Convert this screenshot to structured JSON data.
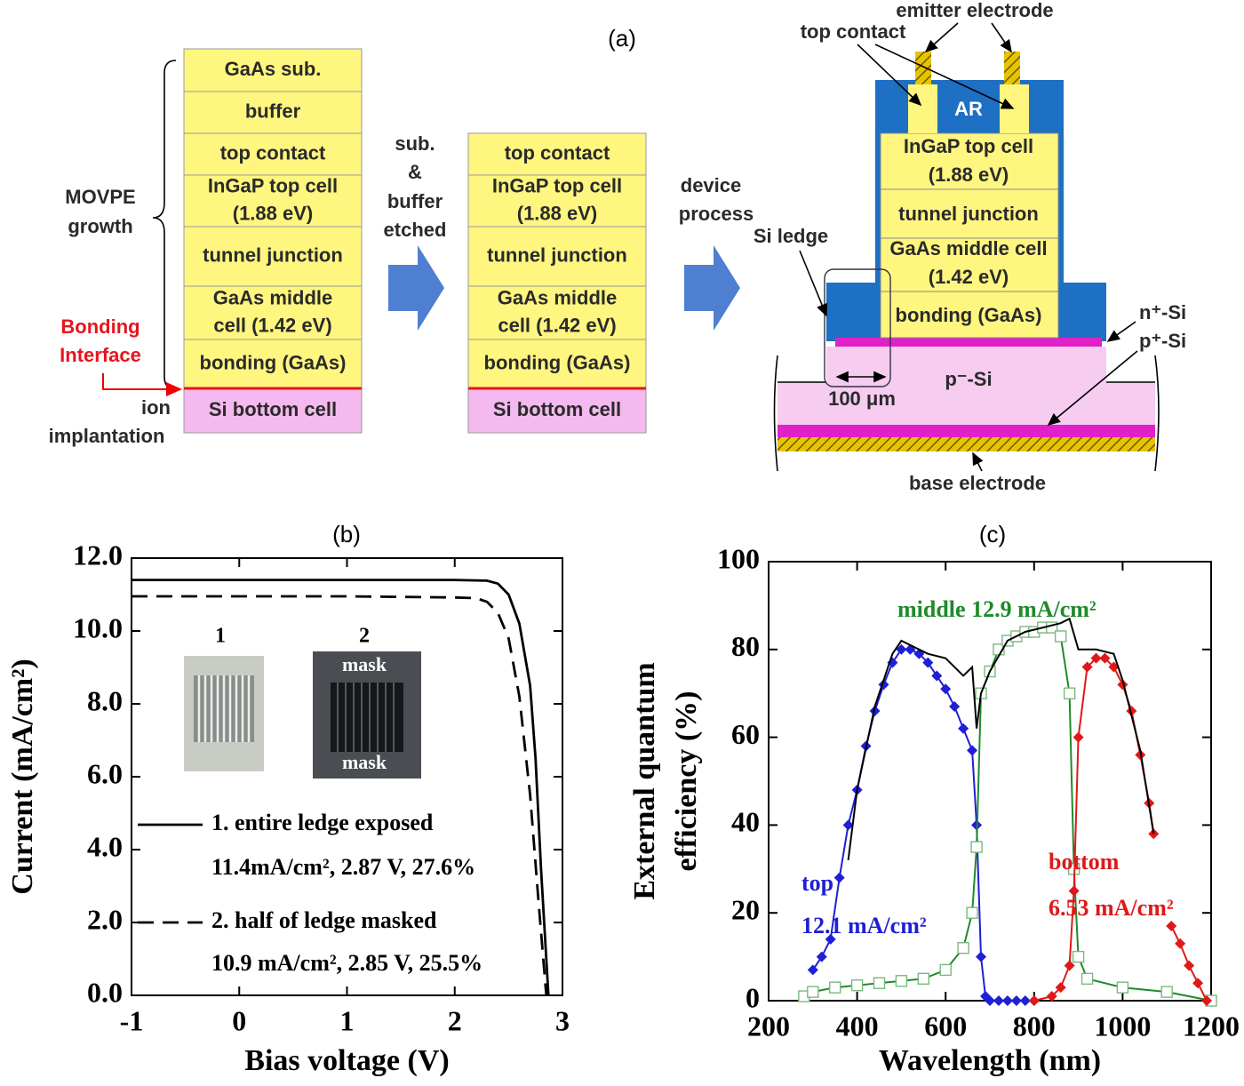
{
  "panel_a": {
    "label": "(a)",
    "growth_label": [
      "MOVPE",
      "growth"
    ],
    "bonding_label": [
      "Bonding",
      "Interface"
    ],
    "ion_label": [
      "ion",
      "implantation"
    ],
    "etch_label": [
      "sub.",
      "&",
      "buffer",
      "etched"
    ],
    "process_label": [
      "device",
      "process"
    ],
    "stack_grown": [
      [
        "GaAs sub."
      ],
      [
        "buffer"
      ],
      [
        "top contact"
      ],
      [
        "InGaP top cell",
        "(1.88 eV)"
      ],
      [
        "tunnel junction"
      ],
      [
        "GaAs middle",
        "cell (1.42 eV)"
      ],
      [
        "bonding (GaAs)"
      ],
      [
        "Si bottom cell"
      ]
    ],
    "stack_etched": [
      [
        "top contact"
      ],
      [
        "InGaP top cell",
        "(1.88 eV)"
      ],
      [
        "tunnel junction"
      ],
      [
        "GaAs middle",
        "cell (1.42 eV)"
      ],
      [
        "bonding (GaAs)"
      ],
      [
        "Si bottom cell"
      ]
    ],
    "device": {
      "emitter_electrode": "emitter electrode",
      "top_contact": "top contact",
      "ar": "AR",
      "layers": [
        [
          "InGaP top cell",
          "(1.88 eV)"
        ],
        [
          "tunnel junction"
        ],
        [
          "GaAs middle cell",
          "(1.42 eV)"
        ],
        [
          "bonding (GaAs)"
        ]
      ],
      "si_ledge": "Si ledge",
      "n_si": "n⁺-Si",
      "p_plus_si": "p⁺-Si",
      "p_minus_si": "p⁻-Si",
      "ledge_width": "100 μm",
      "base_electrode": "base electrode"
    }
  },
  "chart_data": [
    {
      "type": "line",
      "panel_label": "(b)",
      "x_label": "Bias voltage (V)",
      "y_label": "Current (mA/cm²)",
      "xlim": [
        -1,
        3
      ],
      "xticks": [
        -1,
        0,
        1,
        2,
        3
      ],
      "ylim": [
        0,
        12
      ],
      "yticks": [
        {
          "value": 0,
          "label": "0.0"
        },
        {
          "value": 2,
          "label": "2.0"
        },
        {
          "value": 4,
          "label": "4.0"
        },
        {
          "value": 6,
          "label": "6.0"
        },
        {
          "value": 8,
          "label": "8.0"
        },
        {
          "value": 10,
          "label": "10.0"
        },
        {
          "value": 12,
          "label": "12.0"
        }
      ],
      "inset_labels": [
        "1",
        "2",
        "mask",
        "mask"
      ],
      "series": [
        {
          "name": "1. entire ledge exposed",
          "summary": "11.4mA/cm², 2.87 V, 27.6%",
          "color": "#000000",
          "dash": "solid",
          "x": [
            -1,
            0,
            1,
            2,
            2.3,
            2.4,
            2.5,
            2.6,
            2.7,
            2.75,
            2.8,
            2.85,
            2.87
          ],
          "values": [
            11.4,
            11.4,
            11.4,
            11.4,
            11.38,
            11.3,
            11.0,
            10.2,
            8.5,
            6.5,
            3.5,
            1.0,
            0
          ]
        },
        {
          "name": "2. half of ledge masked",
          "summary": "10.9 mA/cm², 2.85 V, 25.5%",
          "color": "#000000",
          "dash": "dashed",
          "x": [
            -1,
            0,
            1,
            2,
            2.2,
            2.3,
            2.4,
            2.5,
            2.6,
            2.7,
            2.78,
            2.85
          ],
          "values": [
            10.95,
            10.95,
            10.95,
            10.92,
            10.9,
            10.8,
            10.5,
            9.8,
            8.2,
            5.5,
            2.5,
            0
          ]
        }
      ]
    },
    {
      "type": "line",
      "panel_label": "(c)",
      "x_label": "Wavelength (nm)",
      "y_label": [
        "External quantum",
        "efficiency (%)"
      ],
      "xlim": [
        200,
        1200
      ],
      "xticks": [
        200,
        400,
        600,
        800,
        1000,
        1200
      ],
      "ylim": [
        0,
        100
      ],
      "yticks": [
        0,
        20,
        40,
        60,
        80,
        100
      ],
      "series": [
        {
          "labels": [
            "top",
            "12.1 mA/cm²"
          ],
          "color": "#1f1fd6",
          "marker": "diamond",
          "x": [
            300,
            320,
            340,
            360,
            380,
            400,
            420,
            440,
            460,
            480,
            500,
            520,
            540,
            560,
            580,
            600,
            620,
            640,
            660,
            670,
            680,
            690,
            700,
            720,
            740,
            760,
            780,
            800
          ],
          "values": [
            7,
            10,
            14,
            28,
            40,
            48,
            58,
            66,
            72,
            77,
            80,
            80,
            79,
            77,
            74,
            71,
            67,
            62,
            57,
            40,
            10,
            1,
            0,
            0,
            0,
            0,
            0,
            0
          ]
        },
        {
          "labels": [
            "middle 12.9 mA/cm²"
          ],
          "color": "#1f8a2a",
          "marker": "square",
          "x": [
            280,
            300,
            350,
            400,
            450,
            500,
            550,
            600,
            640,
            660,
            670,
            680,
            700,
            720,
            740,
            760,
            780,
            800,
            820,
            840,
            860,
            880,
            890,
            900,
            920,
            1000,
            1100,
            1200
          ],
          "values": [
            1,
            2,
            3,
            3.5,
            4,
            4.5,
            5,
            7,
            12,
            20,
            35,
            70,
            75,
            80,
            82,
            83,
            84,
            84,
            85,
            85,
            83,
            70,
            30,
            10,
            5,
            3,
            2,
            0
          ]
        },
        {
          "labels": [
            "bottom",
            "6.53 mA/cm²"
          ],
          "color": "#e01818",
          "marker": "diamond",
          "x": [
            800,
            840,
            860,
            880,
            890,
            900,
            920,
            940,
            960,
            980,
            1000,
            1020,
            1040,
            1060,
            1070,
            1090,
            1110,
            1130,
            1150,
            1170,
            1190
          ],
          "values": [
            0,
            1,
            3,
            8,
            25,
            60,
            76,
            78,
            78,
            76,
            72,
            66,
            56,
            45,
            38,
            null,
            17,
            13,
            8,
            4,
            0
          ]
        },
        {
          "color": "#000000",
          "marker": "none",
          "x": [
            380,
            400,
            440,
            480,
            500,
            520,
            560,
            600,
            640,
            660,
            670,
            680,
            700,
            740,
            780,
            820,
            860,
            880,
            900,
            940,
            980,
            1000,
            1040,
            1070
          ],
          "values": [
            32,
            48,
            67,
            79,
            82,
            81,
            79,
            78,
            74,
            76,
            62,
            70,
            75,
            82,
            84,
            85,
            86,
            87,
            80,
            80,
            79,
            73,
            57,
            38
          ]
        }
      ]
    }
  ]
}
